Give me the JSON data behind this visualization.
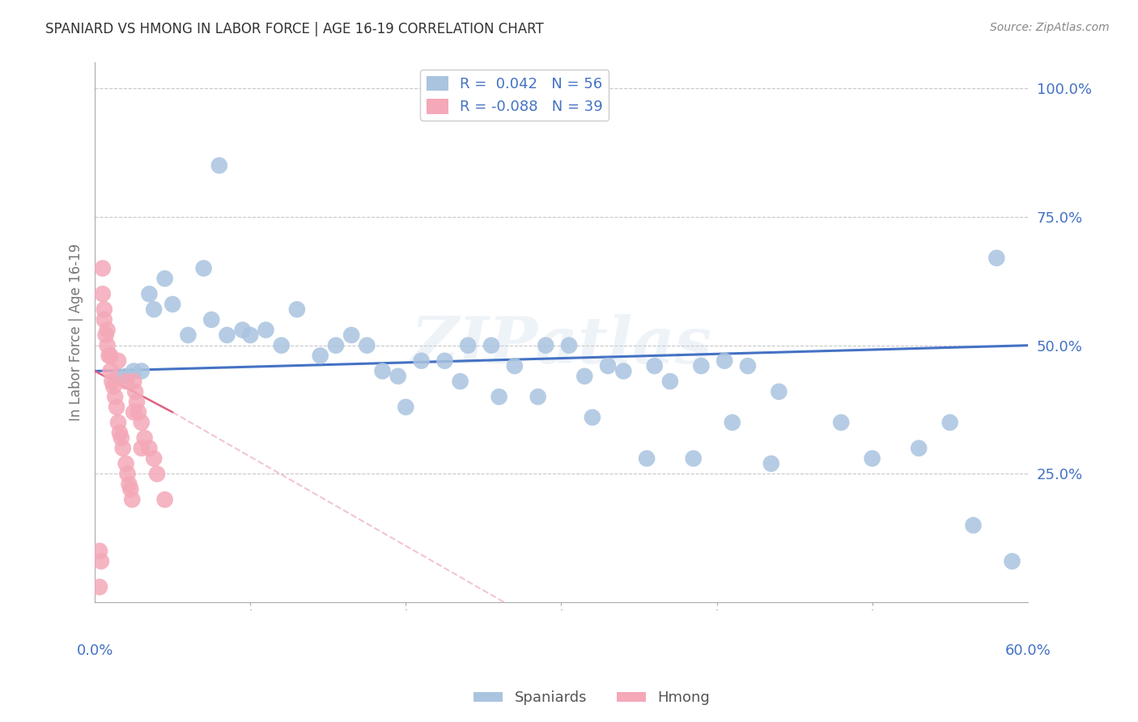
{
  "title": "SPANIARD VS HMONG IN LABOR FORCE | AGE 16-19 CORRELATION CHART",
  "source": "Source: ZipAtlas.com",
  "ylabel": "In Labor Force | Age 16-19",
  "ytick_labels": [
    "100.0%",
    "75.0%",
    "50.0%",
    "25.0%"
  ],
  "ytick_values": [
    100,
    75,
    50,
    25
  ],
  "xlim": [
    0,
    60
  ],
  "ylim": [
    0,
    105
  ],
  "watermark": "ZIPatlas",
  "blue_line_color": "#4472C4",
  "pink_line_color": "#E8A0B0",
  "spaniard_color": "#aac4e0",
  "hmong_color": "#f4a8b8",
  "background_color": "#ffffff",
  "grid_color": "#c8c8c8",
  "title_color": "#333333",
  "tick_label_color": "#4472C4",
  "spaniard_x": [
    3.5,
    3.8,
    6.0,
    7.5,
    8.5,
    9.5,
    10.0,
    11.0,
    12.0,
    13.0,
    14.5,
    15.5,
    16.5,
    17.5,
    18.5,
    19.5,
    21.0,
    22.5,
    24.0,
    25.5,
    27.0,
    29.0,
    30.5,
    31.5,
    33.0,
    34.0,
    36.0,
    37.0,
    39.0,
    40.5,
    42.0,
    44.0,
    48.0,
    55.0,
    58.0,
    4.5,
    5.0,
    7.0,
    8.0,
    1.5,
    2.0,
    2.5,
    3.0,
    20.0,
    23.5,
    26.0,
    28.5,
    32.0,
    35.5,
    38.5,
    41.0,
    43.5,
    50.0,
    53.0,
    56.5,
    59.0
  ],
  "spaniard_y": [
    60,
    57,
    52,
    55,
    52,
    53,
    52,
    53,
    50,
    57,
    48,
    50,
    52,
    50,
    45,
    44,
    47,
    47,
    50,
    50,
    46,
    50,
    50,
    44,
    46,
    45,
    46,
    43,
    46,
    47,
    46,
    41,
    35,
    35,
    67,
    63,
    58,
    65,
    85,
    44,
    44,
    45,
    45,
    38,
    43,
    40,
    40,
    36,
    28,
    28,
    35,
    27,
    28,
    30,
    15,
    8
  ],
  "hmong_x": [
    0.3,
    0.4,
    0.5,
    0.6,
    0.7,
    0.8,
    0.9,
    1.0,
    1.1,
    1.2,
    1.3,
    1.4,
    1.5,
    1.6,
    1.7,
    1.8,
    2.0,
    2.1,
    2.2,
    2.3,
    2.4,
    2.5,
    2.6,
    2.7,
    2.8,
    3.0,
    3.2,
    3.5,
    3.8,
    4.0,
    4.5,
    0.5,
    0.8,
    1.0,
    1.5,
    2.0,
    2.5,
    3.0,
    0.3,
    0.6
  ],
  "hmong_y": [
    3,
    8,
    60,
    55,
    52,
    50,
    48,
    45,
    43,
    42,
    40,
    38,
    35,
    33,
    32,
    30,
    27,
    25,
    23,
    22,
    20,
    43,
    41,
    39,
    37,
    35,
    32,
    30,
    28,
    25,
    20,
    65,
    53,
    48,
    47,
    43,
    37,
    30,
    10,
    57
  ]
}
